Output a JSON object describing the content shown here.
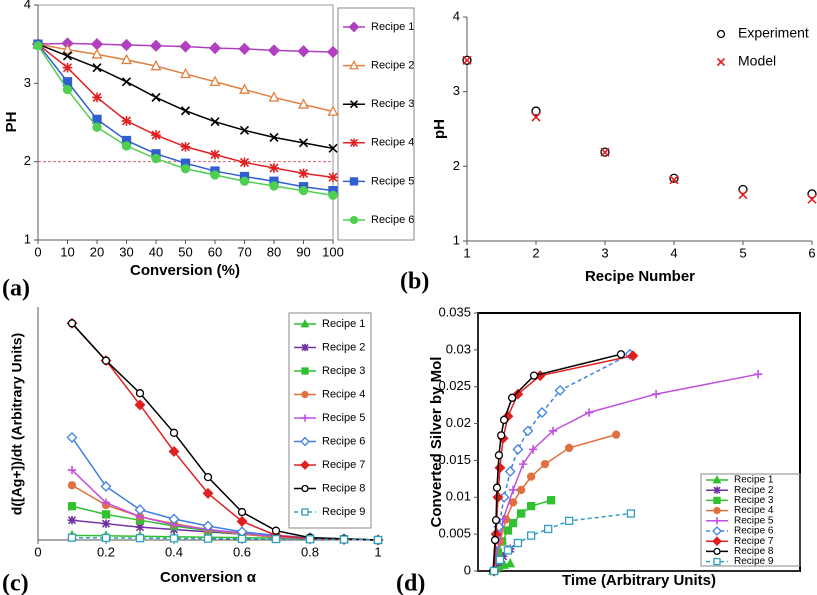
{
  "chart_data": [
    {
      "type": "line",
      "panel_label": "(a)",
      "xlabel": "Conversion (%)",
      "ylabel": "PH",
      "x": [
        0,
        10,
        20,
        30,
        40,
        50,
        60,
        70,
        80,
        90,
        100
      ],
      "xlim": [
        0,
        100
      ],
      "xticks": [
        0,
        10,
        20,
        30,
        40,
        50,
        60,
        70,
        80,
        90,
        100
      ],
      "ylim": [
        1,
        4
      ],
      "yticks": [
        1,
        2,
        3,
        4
      ],
      "reference_line": {
        "value": 2,
        "color": "#e06070"
      },
      "legend": "outside right",
      "series": [
        {
          "name": "Recipe 1",
          "color": "#b040c0",
          "marker": "diamond",
          "filled": true,
          "values": [
            3.5,
            3.51,
            3.5,
            3.49,
            3.48,
            3.47,
            3.45,
            3.44,
            3.42,
            3.41,
            3.4
          ]
        },
        {
          "name": "Recipe 2",
          "color": "#e08040",
          "marker": "triangle",
          "filled": false,
          "values": [
            3.5,
            3.43,
            3.37,
            3.3,
            3.22,
            3.12,
            3.02,
            2.92,
            2.82,
            2.73,
            2.64
          ]
        },
        {
          "name": "Recipe 3",
          "color": "#000000",
          "marker": "x",
          "filled": false,
          "values": [
            3.5,
            3.35,
            3.2,
            3.02,
            2.82,
            2.65,
            2.51,
            2.4,
            2.31,
            2.24,
            2.17
          ]
        },
        {
          "name": "Recipe 4",
          "color": "#e02020",
          "marker": "star",
          "filled": false,
          "values": [
            3.5,
            3.2,
            2.82,
            2.52,
            2.34,
            2.19,
            2.09,
            1.99,
            1.92,
            1.85,
            1.8
          ]
        },
        {
          "name": "Recipe 5",
          "color": "#3060d0",
          "marker": "square",
          "filled": true,
          "values": [
            3.5,
            3.02,
            2.54,
            2.27,
            2.1,
            1.98,
            1.88,
            1.81,
            1.75,
            1.68,
            1.63
          ]
        },
        {
          "name": "Recipe 6",
          "color": "#50d050",
          "marker": "circle",
          "filled": true,
          "values": [
            3.48,
            2.92,
            2.44,
            2.2,
            2.04,
            1.91,
            1.83,
            1.75,
            1.69,
            1.63,
            1.57
          ]
        }
      ]
    },
    {
      "type": "scatter",
      "panel_label": "(b)",
      "xlabel": "Recipe Number",
      "ylabel": "pH",
      "x": [
        1,
        2,
        3,
        4,
        5,
        6
      ],
      "xlim": [
        1,
        6
      ],
      "xticks": [
        1,
        2,
        3,
        4,
        5,
        6
      ],
      "ylim": [
        1,
        4
      ],
      "yticks": [
        1,
        2,
        3,
        4
      ],
      "legend": "upper right",
      "series": [
        {
          "name": "Experiment",
          "color": "#000000",
          "marker": "circle",
          "filled": false,
          "values": [
            3.42,
            2.74,
            2.19,
            1.84,
            1.69,
            1.63
          ]
        },
        {
          "name": "Model",
          "color": "#e02020",
          "marker": "x",
          "filled": false,
          "values": [
            3.42,
            2.66,
            2.19,
            1.82,
            1.62,
            1.56
          ]
        }
      ]
    },
    {
      "type": "line",
      "panel_label": "(c)",
      "xlabel": "Conversion α",
      "ylabel": "d([Ag+])/dt  (Arbitrary Units)",
      "x": [
        0.1,
        0.2,
        0.3,
        0.4,
        0.5,
        0.6,
        0.7,
        0.8,
        0.9,
        1
      ],
      "xlim": [
        0,
        1
      ],
      "xticks": [
        0,
        0.2,
        0.4,
        0.6,
        0.8,
        1
      ],
      "ylim": [
        0,
        1
      ],
      "legend": "upper right",
      "series": [
        {
          "name": "Recipe 1",
          "color": "#30c030",
          "marker": "triangle",
          "filled": true,
          "values": [
            0.02,
            0.018,
            0.016,
            0.014,
            0.012,
            0.01,
            0.008,
            0.005,
            0.003,
            0
          ]
        },
        {
          "name": "Recipe 2",
          "color": "#7030a0",
          "marker": "star",
          "filled": false,
          "values": [
            0.085,
            0.07,
            0.055,
            0.045,
            0.035,
            0.025,
            0.015,
            0.008,
            0.004,
            0
          ]
        },
        {
          "name": "Recipe 3",
          "color": "#30c030",
          "marker": "square",
          "filled": true,
          "values": [
            0.145,
            0.11,
            0.085,
            0.06,
            0.04,
            0.025,
            0.012,
            0.006,
            0.003,
            0
          ]
        },
        {
          "name": "Recipe 4",
          "color": "#e07040",
          "marker": "circle",
          "filled": true,
          "values": [
            0.235,
            0.15,
            0.1,
            0.07,
            0.045,
            0.025,
            0.012,
            0.006,
            0.003,
            0
          ]
        },
        {
          "name": "Recipe 5",
          "color": "#c050e0",
          "marker": "plus",
          "filled": false,
          "values": [
            0.3,
            0.16,
            0.1,
            0.065,
            0.045,
            0.03,
            0.015,
            0.008,
            0.004,
            0
          ]
        },
        {
          "name": "Recipe 6",
          "color": "#4080e0",
          "marker": "diamond",
          "filled": false,
          "values": [
            0.44,
            0.23,
            0.13,
            0.09,
            0.06,
            0.035,
            0.02,
            0.01,
            0.005,
            0
          ]
        },
        {
          "name": "Recipe 7",
          "color": "#e02020",
          "marker": "diamond",
          "filled": true,
          "values": [
            0.93,
            0.77,
            0.58,
            0.38,
            0.2,
            0.08,
            0.02,
            0.005,
            0.002,
            0
          ]
        },
        {
          "name": "Recipe 8",
          "color": "#000000",
          "marker": "circle",
          "filled": false,
          "values": [
            0.93,
            0.77,
            0.63,
            0.46,
            0.27,
            0.12,
            0.04,
            0.01,
            0.005,
            0
          ]
        },
        {
          "name": "Recipe 9",
          "color": "#30a0c0",
          "marker": "square",
          "filled": false,
          "dashed": true,
          "values": [
            0.01,
            0.009,
            0.008,
            0.007,
            0.006,
            0.005,
            0.004,
            0.003,
            0.002,
            0
          ]
        }
      ]
    },
    {
      "type": "line",
      "panel_label": "(d)",
      "xlabel": "Time (Arbitrary Units)",
      "ylabel": "Converted Silver by Mol",
      "xlim": [
        0,
        1
      ],
      "ylim": [
        0,
        0.035
      ],
      "yticks": [
        0,
        0.005,
        0.01,
        0.015,
        0.02,
        0.025,
        0.03,
        0.035
      ],
      "legend": "lower right",
      "series": [
        {
          "name": "Recipe 1",
          "color": "#30c030",
          "marker": "triangle",
          "filled": true,
          "x": [
            0.047,
            0.056,
            0.065,
            0.081,
            0.1
          ],
          "values": [
            0,
            0.0003,
            0.0006,
            0.0008,
            0.001
          ]
        },
        {
          "name": "Recipe 2",
          "color": "#7030a0",
          "marker": "star",
          "filled": false,
          "x": [
            0.05,
            0.062,
            0.078,
            0.1,
            0.124
          ],
          "values": [
            0,
            0.0012,
            0.002,
            0.003,
            0.0038
          ]
        },
        {
          "name": "Recipe 3",
          "color": "#30c030",
          "marker": "square",
          "filled": true,
          "x": [
            0.05,
            0.062,
            0.075,
            0.093,
            0.109,
            0.134,
            0.165,
            0.227
          ],
          "values": [
            0,
            0.0025,
            0.004,
            0.0055,
            0.0065,
            0.0078,
            0.0088,
            0.0096
          ]
        },
        {
          "name": "Recipe 4",
          "color": "#e07040",
          "marker": "circle",
          "filled": true,
          "x": [
            0.05,
            0.068,
            0.087,
            0.109,
            0.134,
            0.165,
            0.208,
            0.283,
            0.429
          ],
          "values": [
            0,
            0.004,
            0.007,
            0.0093,
            0.011,
            0.0128,
            0.0145,
            0.0167,
            0.0185
          ]
        },
        {
          "name": "Recipe 5",
          "color": "#c050e0",
          "marker": "plus",
          "filled": false,
          "x": [
            0.05,
            0.078,
            0.109,
            0.14,
            0.171,
            0.233,
            0.345,
            0.553,
            0.87
          ],
          "values": [
            0,
            0.007,
            0.011,
            0.0145,
            0.0165,
            0.019,
            0.0215,
            0.024,
            0.0267
          ]
        },
        {
          "name": "Recipe 6",
          "color": "#4080e0",
          "marker": "diamond",
          "filled": false,
          "dashed": true,
          "x": [
            0.05,
            0.065,
            0.081,
            0.1,
            0.124,
            0.155,
            0.199,
            0.255,
            0.472
          ],
          "values": [
            0,
            0.006,
            0.01,
            0.0135,
            0.0165,
            0.019,
            0.0215,
            0.0245,
            0.0294
          ]
        },
        {
          "name": "Recipe 7",
          "color": "#e02020",
          "marker": "diamond",
          "filled": true,
          "x": [
            0.05,
            0.056,
            0.062,
            0.068,
            0.078,
            0.093,
            0.124,
            0.193,
            0.481
          ],
          "values": [
            0,
            0.005,
            0.01,
            0.014,
            0.018,
            0.021,
            0.024,
            0.0265,
            0.0292
          ]
        },
        {
          "name": "Recipe 8",
          "color": "#000000",
          "marker": "circle",
          "filled": false,
          "x": [
            0.047,
            0.053,
            0.056,
            0.059,
            0.065,
            0.072,
            0.081,
            0.106,
            0.174,
            0.444
          ],
          "values": [
            0,
            0.0042,
            0.0069,
            0.0113,
            0.0157,
            0.0184,
            0.0205,
            0.0235,
            0.0265,
            0.0294
          ]
        },
        {
          "name": "Recipe 9",
          "color": "#30a0c0",
          "marker": "square",
          "filled": false,
          "dashed": true,
          "x": [
            0.05,
            0.068,
            0.093,
            0.124,
            0.165,
            0.218,
            0.283,
            0.475
          ],
          "values": [
            0,
            0.0015,
            0.0028,
            0.0038,
            0.0048,
            0.0057,
            0.0068,
            0.0078
          ]
        }
      ]
    }
  ]
}
